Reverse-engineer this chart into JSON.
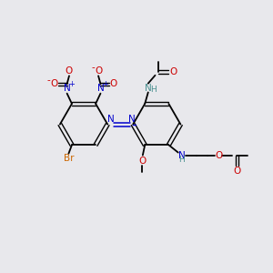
{
  "bg_color": "#e8e8ec",
  "black": "#000000",
  "blue": "#0000cc",
  "red": "#cc0000",
  "teal": "#4a9090",
  "orange": "#cc6600",
  "figsize": [
    3.0,
    3.0
  ],
  "dpi": 100,
  "xlim": [
    0,
    10
  ],
  "ylim": [
    0,
    10
  ]
}
